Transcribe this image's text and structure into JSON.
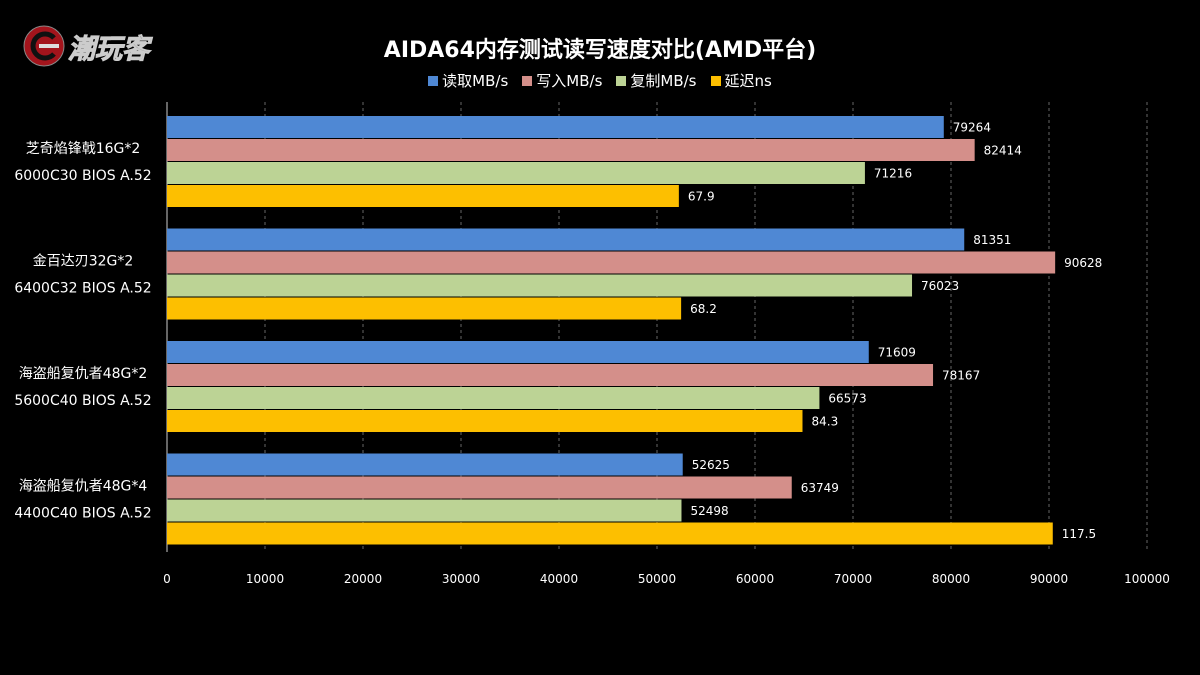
{
  "logo": {
    "text": "潮玩客"
  },
  "chart_data": {
    "type": "bar",
    "orientation": "horizontal",
    "title": "AIDA64内存测试读写速度对比(AMD平台)",
    "categories": [
      [
        "芝奇焰锋戟16G*2",
        "6000C30 BIOS A.52"
      ],
      [
        "金百达刃32G*2",
        "6400C32 BIOS A.52"
      ],
      [
        "海盗船复仇者48G*2",
        "5600C40 BIOS A.52"
      ],
      [
        "海盗船复仇者48G*4",
        "4400C40 BIOS A.52"
      ]
    ],
    "series": [
      {
        "name": "读取MB/s",
        "color": "#4f88d4",
        "values": [
          79264,
          81351,
          71609,
          52625
        ],
        "labels": [
          "79264",
          "81351",
          "71609",
          "52625"
        ],
        "axis": "primary"
      },
      {
        "name": "写入MB/s",
        "color": "#d48f8a",
        "values": [
          82414,
          90628,
          78167,
          63749
        ],
        "labels": [
          "82414",
          "90628",
          "78167",
          "63749"
        ],
        "axis": "primary"
      },
      {
        "name": "复制MB/s",
        "color": "#bcd395",
        "values": [
          71216,
          76023,
          66573,
          52498
        ],
        "labels": [
          "71216",
          "76023",
          "66573",
          "52498"
        ],
        "axis": "primary"
      },
      {
        "name": "延迟ns",
        "color": "#fdbf00",
        "values": [
          67.9,
          68.2,
          84.3,
          117.5
        ],
        "labels": [
          "67.9",
          "68.2",
          "84.3",
          "117.5"
        ],
        "axis": "secondary"
      }
    ],
    "xlim": [
      0,
      100000
    ],
    "secondary_xlim": [
      0,
      130
    ],
    "xticks": [
      "0",
      "10000",
      "20000",
      "30000",
      "40000",
      "50000",
      "60000",
      "70000",
      "80000",
      "90000",
      "100000"
    ],
    "grid": true,
    "legend": "top"
  }
}
